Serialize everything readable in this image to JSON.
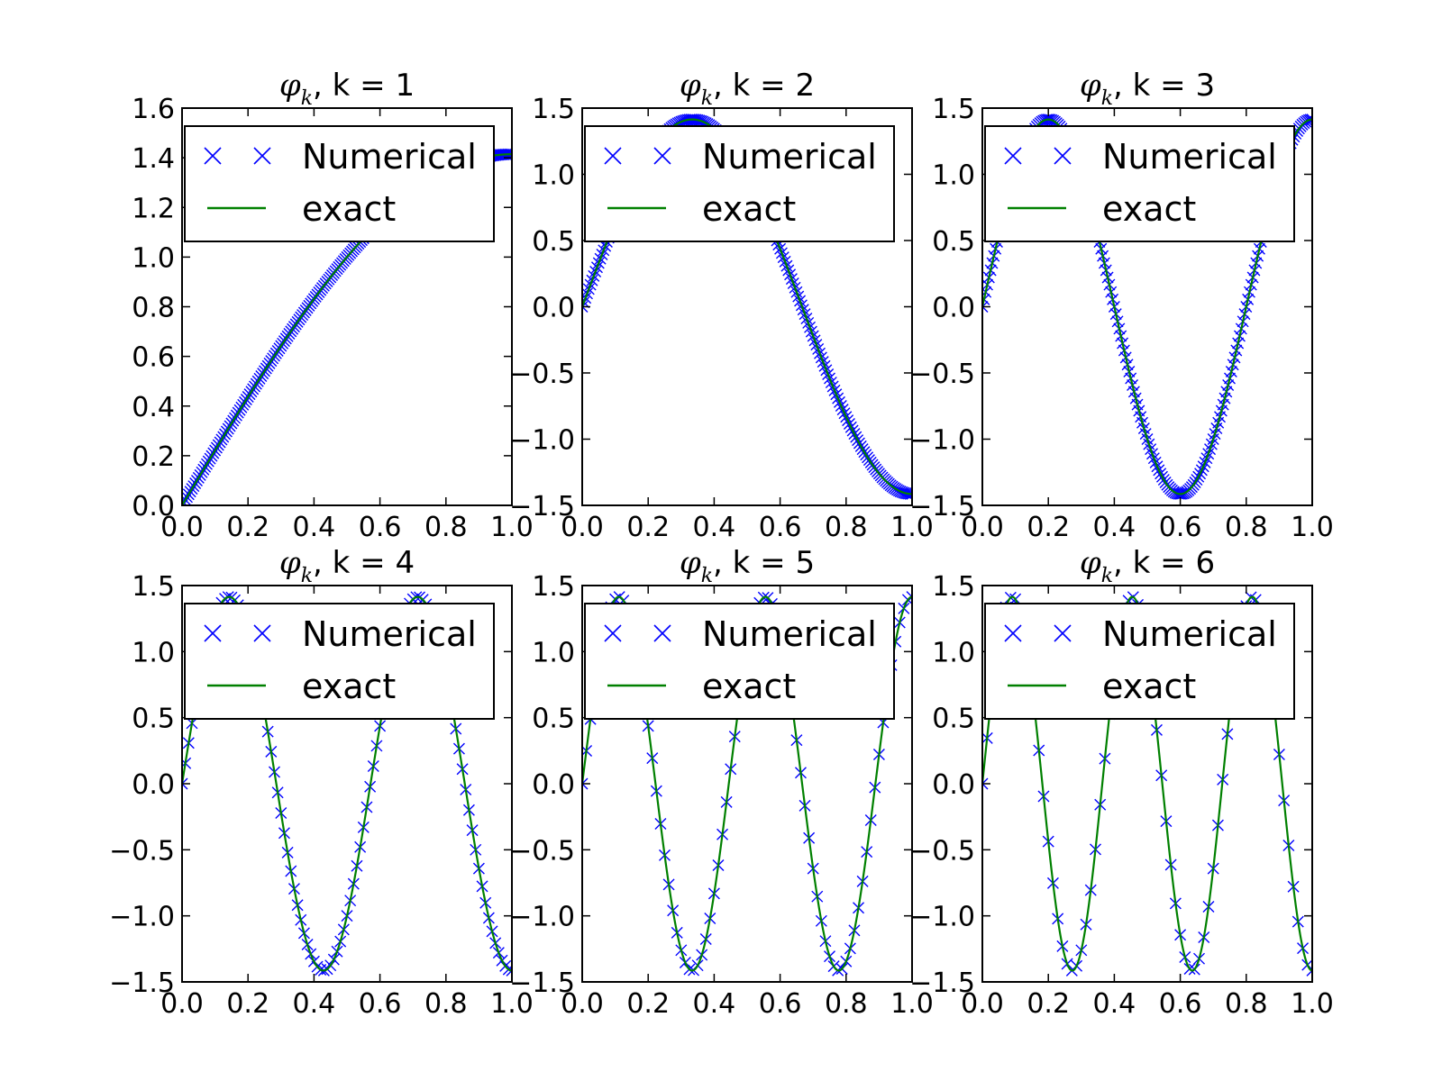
{
  "chart_data": [
    {
      "type": "line",
      "k": 1,
      "title_symbol": "φ",
      "title_subscript": "k",
      "title_rest": ", k = 1",
      "xlim": [
        0.0,
        1.0
      ],
      "ylim": [
        0.0,
        1.6
      ],
      "xticks": [
        "0.0",
        "0.2",
        "0.4",
        "0.6",
        "0.8",
        "1.0"
      ],
      "yticks": [
        "0.0",
        "0.2",
        "0.4",
        "0.6",
        "0.8",
        "1.0",
        "1.2",
        "1.4",
        "1.6"
      ],
      "legend": {
        "placement": "upper-left",
        "entries": [
          "Numerical",
          "exact"
        ]
      },
      "series": [
        {
          "name": "Numerical",
          "marker": "x",
          "color": "#0000ff"
        },
        {
          "name": "exact",
          "marker": "line",
          "color": "#008000"
        }
      ],
      "function": "sqrt(2)*sin((k-0.5)*pi*x)",
      "x": [
        0.0,
        0.25,
        0.5,
        0.75,
        1.0
      ],
      "y": [
        0.0,
        0.541,
        1.0,
        1.307,
        1.414
      ],
      "samples": 200
    },
    {
      "type": "line",
      "k": 2,
      "title_symbol": "φ",
      "title_subscript": "k",
      "title_rest": ", k = 2",
      "xlim": [
        0.0,
        1.0
      ],
      "ylim": [
        -1.5,
        1.5
      ],
      "xticks": [
        "0.0",
        "0.2",
        "0.4",
        "0.6",
        "0.8",
        "1.0"
      ],
      "yticks": [
        "−1.5",
        "−1.0",
        "−0.5",
        "0.0",
        "0.5",
        "1.0",
        "1.5"
      ],
      "legend": {
        "placement": "upper-left",
        "entries": [
          "Numerical",
          "exact"
        ]
      },
      "series": [
        {
          "name": "Numerical",
          "marker": "x",
          "color": "#0000ff"
        },
        {
          "name": "exact",
          "marker": "line",
          "color": "#008000"
        }
      ],
      "function": "sqrt(2)*sin((k-0.5)*pi*x)",
      "x": [
        0.0,
        0.333,
        0.667,
        1.0
      ],
      "y": [
        0.0,
        1.414,
        0.0,
        -1.414
      ],
      "samples": 200
    },
    {
      "type": "line",
      "k": 3,
      "title_symbol": "φ",
      "title_subscript": "k",
      "title_rest": ", k = 3",
      "xlim": [
        0.0,
        1.0
      ],
      "ylim": [
        -1.5,
        1.5
      ],
      "xticks": [
        "0.0",
        "0.2",
        "0.4",
        "0.6",
        "0.8",
        "1.0"
      ],
      "yticks": [
        "−1.5",
        "−1.0",
        "−0.5",
        "0.0",
        "0.5",
        "1.0",
        "1.5"
      ],
      "legend": {
        "placement": "upper-left",
        "entries": [
          "Numerical",
          "exact"
        ]
      },
      "series": [
        {
          "name": "Numerical",
          "marker": "x",
          "color": "#0000ff"
        },
        {
          "name": "exact",
          "marker": "line",
          "color": "#008000"
        }
      ],
      "function": "sqrt(2)*sin((k-0.5)*pi*x)",
      "x": [
        0.0,
        0.2,
        0.6,
        1.0
      ],
      "y": [
        0.0,
        1.414,
        -1.414,
        1.414
      ],
      "samples": 200
    },
    {
      "type": "line",
      "k": 4,
      "title_symbol": "φ",
      "title_subscript": "k",
      "title_rest": ", k = 4",
      "xlim": [
        0.0,
        1.0
      ],
      "ylim": [
        -1.5,
        1.5
      ],
      "xticks": [
        "0.0",
        "0.2",
        "0.4",
        "0.6",
        "0.8",
        "1.0"
      ],
      "yticks": [
        "−1.5",
        "−1.0",
        "−0.5",
        "0.0",
        "0.5",
        "1.0",
        "1.5"
      ],
      "legend": {
        "placement": "upper-left",
        "entries": [
          "Numerical",
          "exact"
        ]
      },
      "series": [
        {
          "name": "Numerical",
          "marker": "x",
          "color": "#0000ff"
        },
        {
          "name": "exact",
          "marker": "line",
          "color": "#008000"
        }
      ],
      "function": "sqrt(2)*sin((k-0.5)*pi*x)",
      "x": [
        0.0,
        0.143,
        0.429,
        0.714,
        1.0
      ],
      "y": [
        0.0,
        1.414,
        -1.414,
        1.414,
        -1.414
      ],
      "samples": 100
    },
    {
      "type": "line",
      "k": 5,
      "title_symbol": "φ",
      "title_subscript": "k",
      "title_rest": ", k = 5",
      "xlim": [
        0.0,
        1.0
      ],
      "ylim": [
        -1.5,
        1.5
      ],
      "xticks": [
        "0.0",
        "0.2",
        "0.4",
        "0.6",
        "0.8",
        "1.0"
      ],
      "yticks": [
        "−1.5",
        "−1.0",
        "−0.5",
        "0.0",
        "0.5",
        "1.0",
        "1.5"
      ],
      "legend": {
        "placement": "upper-left",
        "entries": [
          "Numerical",
          "exact"
        ]
      },
      "series": [
        {
          "name": "Numerical",
          "marker": "x",
          "color": "#0000ff"
        },
        {
          "name": "exact",
          "marker": "line",
          "color": "#008000"
        }
      ],
      "function": "sqrt(2)*sin((k-0.5)*pi*x)",
      "x": [
        0.0,
        0.111,
        0.333,
        0.556,
        0.778,
        1.0
      ],
      "y": [
        0.0,
        1.414,
        -1.414,
        1.414,
        -1.414,
        1.414
      ],
      "samples": 80
    },
    {
      "type": "line",
      "k": 6,
      "title_symbol": "φ",
      "title_subscript": "k",
      "title_rest": ", k = 6",
      "xlim": [
        0.0,
        1.0
      ],
      "ylim": [
        -1.5,
        1.5
      ],
      "xticks": [
        "0.0",
        "0.2",
        "0.4",
        "0.6",
        "0.8",
        "1.0"
      ],
      "yticks": [
        "−1.5",
        "−1.0",
        "−0.5",
        "0.0",
        "0.5",
        "1.0",
        "1.5"
      ],
      "legend": {
        "placement": "upper-left",
        "entries": [
          "Numerical",
          "exact"
        ]
      },
      "series": [
        {
          "name": "Numerical",
          "marker": "x",
          "color": "#0000ff"
        },
        {
          "name": "exact",
          "marker": "line",
          "color": "#008000"
        }
      ],
      "function": "sqrt(2)*sin((k-0.5)*pi*x)",
      "x": [
        0.0,
        0.091,
        0.273,
        0.455,
        0.636,
        0.818,
        1.0
      ],
      "y": [
        0.0,
        1.414,
        -1.414,
        1.414,
        -1.414,
        1.414,
        -1.414
      ],
      "samples": 70
    }
  ]
}
